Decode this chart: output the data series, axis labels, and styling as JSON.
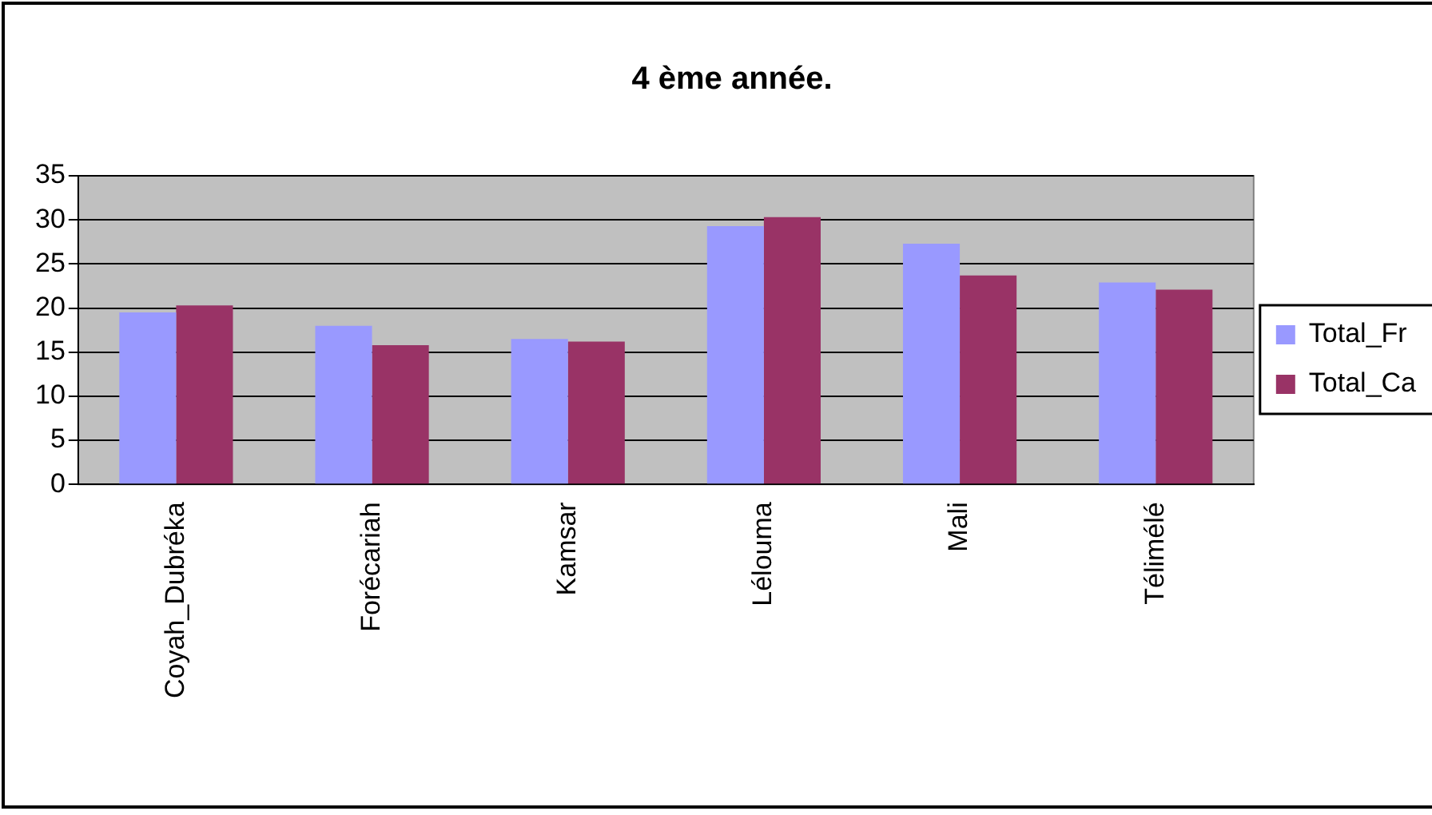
{
  "chart_data": {
    "type": "bar",
    "title": "4 ème année.",
    "categories": [
      "Coyah_Dubréka",
      "Forécariah",
      "Kamsar",
      "Lélouma",
      "Mali",
      "Télimélé"
    ],
    "series": [
      {
        "name": "Total_Fr",
        "color": "#9999ff",
        "values": [
          19.5,
          18.0,
          16.5,
          29.3,
          27.3,
          22.9
        ]
      },
      {
        "name": "Total_Ca",
        "color": "#993366",
        "values": [
          20.3,
          15.8,
          16.2,
          30.3,
          23.7,
          22.1
        ]
      }
    ],
    "ylim": [
      0,
      35
    ],
    "yticks": [
      0,
      5,
      10,
      15,
      20,
      25,
      30,
      35
    ],
    "grid": "y",
    "legend": "right"
  }
}
